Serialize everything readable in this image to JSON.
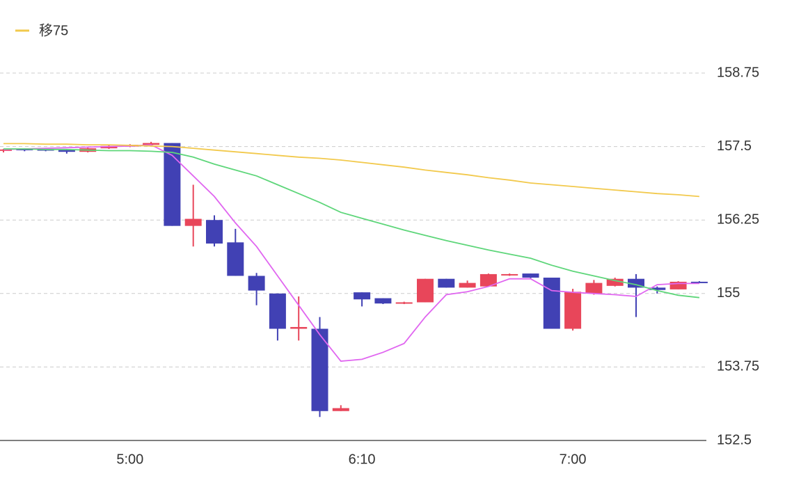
{
  "chart_data": {
    "type": "candlestick",
    "categories": [
      null,
      null,
      null,
      null,
      null,
      null,
      "5:00",
      null,
      null,
      null,
      null,
      null,
      null,
      null,
      null,
      null,
      null,
      "6:10",
      null,
      null,
      null,
      null,
      null,
      null,
      null,
      null,
      null,
      "7:00",
      null,
      null,
      null,
      null,
      null,
      null
    ],
    "open": [
      157.43,
      157.46,
      157.46,
      157.44,
      157.41,
      157.47,
      157.5,
      157.53,
      157.56,
      156.15,
      156.25,
      155.87,
      155.3,
      155.0,
      154.4,
      154.4,
      153.0,
      155.02,
      154.92,
      154.83,
      154.85,
      155.25,
      155.1,
      155.12,
      155.31,
      155.34,
      155.27,
      154.4,
      155.0,
      155.13,
      155.25,
      155.1,
      155.07,
      155.2
    ],
    "high": [
      157.46,
      157.47,
      157.47,
      157.45,
      157.48,
      157.52,
      157.54,
      157.58,
      157.56,
      156.85,
      156.33,
      156.1,
      155.35,
      155.0,
      154.95,
      154.6,
      153.1,
      155.02,
      154.92,
      154.86,
      155.25,
      155.25,
      155.22,
      155.34,
      155.34,
      155.34,
      155.27,
      155.08,
      155.23,
      155.27,
      155.33,
      155.12,
      155.21,
      155.21
    ],
    "low": [
      157.4,
      157.42,
      157.42,
      157.38,
      157.4,
      157.46,
      157.49,
      157.52,
      156.15,
      155.8,
      155.8,
      155.3,
      154.8,
      154.2,
      154.2,
      152.9,
      153.0,
      154.78,
      154.82,
      154.82,
      154.85,
      155.1,
      155.1,
      155.12,
      155.3,
      155.26,
      154.4,
      154.37,
      154.98,
      155.12,
      154.6,
      155.0,
      155.07,
      155.19
    ],
    "close": [
      157.45,
      157.44,
      157.43,
      157.41,
      157.47,
      157.51,
      157.53,
      157.56,
      156.15,
      156.27,
      155.85,
      155.3,
      155.05,
      154.4,
      154.43,
      153.0,
      153.05,
      154.9,
      154.83,
      154.85,
      155.25,
      155.1,
      155.18,
      155.33,
      155.33,
      155.27,
      154.4,
      155.03,
      155.18,
      155.25,
      155.1,
      155.06,
      155.2,
      155.19
    ],
    "up_color": "#e8465a",
    "down_color": "#4141b4",
    "series": [
      {
        "color": "#e066f0",
        "values": [
          157.45,
          157.46,
          157.47,
          157.48,
          157.49,
          157.5,
          157.51,
          157.53,
          157.35,
          157.0,
          156.65,
          156.2,
          155.8,
          155.3,
          154.8,
          154.3,
          153.85,
          153.88,
          154.0,
          154.15,
          154.6,
          154.98,
          155.03,
          155.12,
          155.25,
          155.25,
          155.05,
          155.02,
          155.0,
          154.98,
          154.95,
          155.15,
          155.17,
          155.17
        ]
      },
      {
        "color": "#5ed67a",
        "values": [
          157.46,
          157.46,
          157.45,
          157.45,
          157.44,
          157.43,
          157.43,
          157.42,
          157.4,
          157.32,
          157.2,
          157.1,
          157.0,
          156.85,
          156.7,
          156.55,
          156.38,
          156.28,
          156.18,
          156.08,
          155.99,
          155.9,
          155.82,
          155.74,
          155.67,
          155.6,
          155.48,
          155.38,
          155.3,
          155.22,
          155.15,
          155.05,
          154.97,
          154.93
        ]
      },
      {
        "name": "移75",
        "color": "#f2c94c",
        "values": [
          157.55,
          157.55,
          157.54,
          157.54,
          157.53,
          157.53,
          157.52,
          157.51,
          157.5,
          157.47,
          157.44,
          157.41,
          157.38,
          157.35,
          157.32,
          157.3,
          157.27,
          157.23,
          157.19,
          157.15,
          157.1,
          157.06,
          157.02,
          156.97,
          156.93,
          156.88,
          156.85,
          156.82,
          156.79,
          156.76,
          156.73,
          156.7,
          156.68,
          156.65
        ]
      }
    ],
    "ylim": [
      152.5,
      158.75
    ],
    "yticks": [
      152.5,
      153.75,
      155,
      156.25,
      157.5,
      158.75
    ],
    "grid": true
  }
}
